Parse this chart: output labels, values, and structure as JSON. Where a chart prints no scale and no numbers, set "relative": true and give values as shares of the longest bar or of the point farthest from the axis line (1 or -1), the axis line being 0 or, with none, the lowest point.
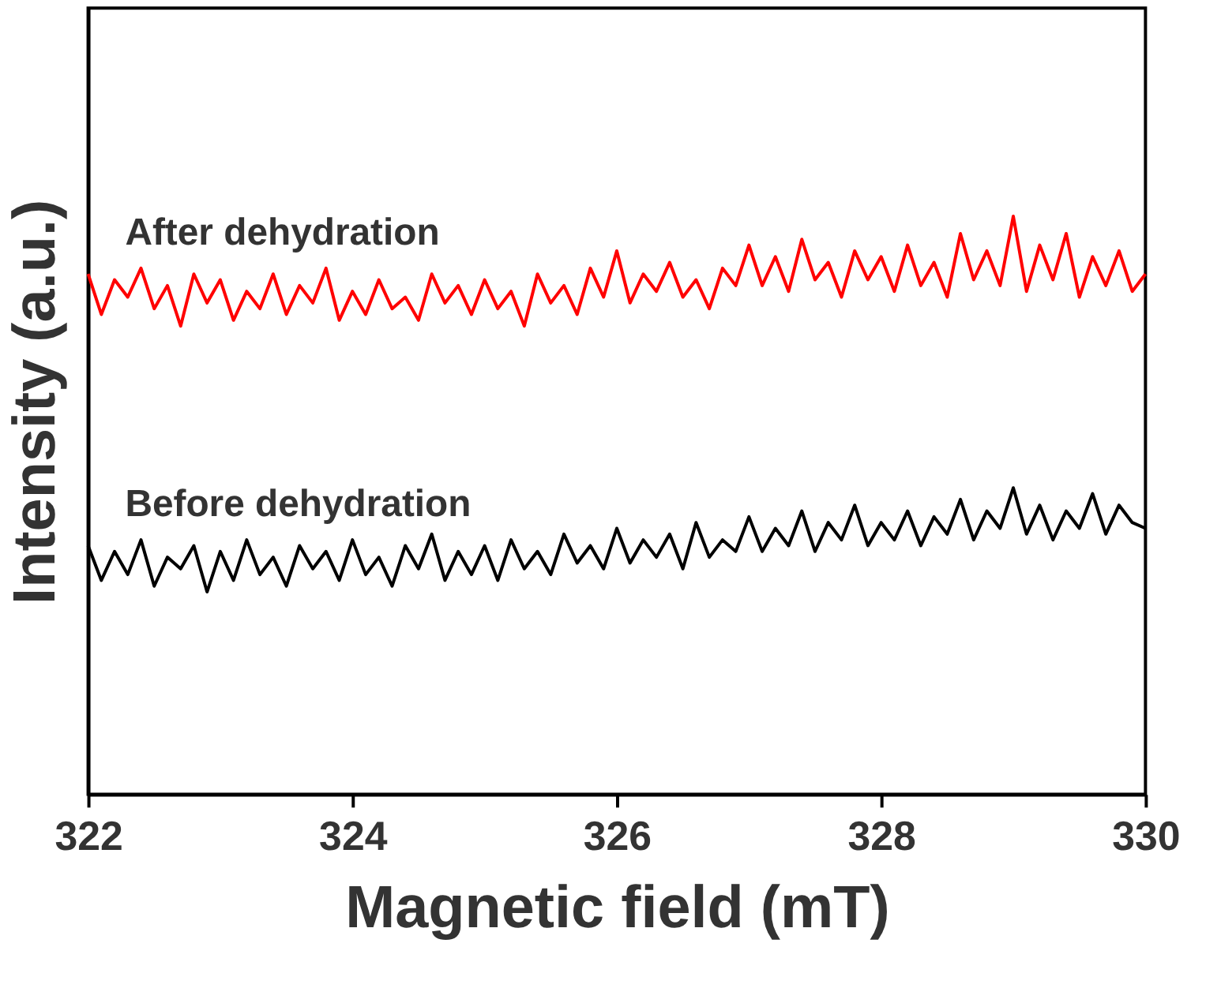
{
  "chart_data": {
    "type": "line",
    "relative": true,
    "xlabel": "Magnetic field (mT)",
    "ylabel": "Intensity (a.u.)",
    "xlim": [
      322,
      330
    ],
    "xticks": [
      322,
      324,
      326,
      328,
      330
    ],
    "tick_labels": "x",
    "grid": false,
    "legend": false,
    "marker": "none",
    "line_style": "solid",
    "x": [
      322.0,
      322.1,
      322.2,
      322.3,
      322.4,
      322.5,
      322.6,
      322.7,
      322.8,
      322.9,
      323.0,
      323.1,
      323.2,
      323.3,
      323.4,
      323.5,
      323.6,
      323.7,
      323.8,
      323.9,
      324.0,
      324.1,
      324.2,
      324.3,
      324.4,
      324.5,
      324.6,
      324.7,
      324.8,
      324.9,
      325.0,
      325.1,
      325.2,
      325.3,
      325.4,
      325.5,
      325.6,
      325.7,
      325.8,
      325.9,
      326.0,
      326.1,
      326.2,
      326.3,
      326.4,
      326.5,
      326.6,
      326.7,
      326.8,
      326.9,
      327.0,
      327.1,
      327.2,
      327.3,
      327.4,
      327.5,
      327.6,
      327.7,
      327.8,
      327.9,
      328.0,
      328.1,
      328.2,
      328.3,
      328.4,
      328.5,
      328.6,
      328.7,
      328.8,
      328.9,
      329.0,
      329.1,
      329.2,
      329.3,
      329.4,
      329.5,
      329.6,
      329.7,
      329.8,
      329.9,
      330.0
    ],
    "series": [
      {
        "name": "After dehydration",
        "color": "#ff0000",
        "values": [
          0.9,
          0.83,
          0.89,
          0.86,
          0.91,
          0.84,
          0.88,
          0.81,
          0.9,
          0.85,
          0.89,
          0.82,
          0.87,
          0.84,
          0.9,
          0.83,
          0.88,
          0.85,
          0.91,
          0.82,
          0.87,
          0.83,
          0.89,
          0.84,
          0.86,
          0.82,
          0.9,
          0.85,
          0.88,
          0.83,
          0.89,
          0.84,
          0.87,
          0.81,
          0.9,
          0.85,
          0.88,
          0.83,
          0.91,
          0.86,
          0.94,
          0.85,
          0.9,
          0.87,
          0.92,
          0.86,
          0.89,
          0.84,
          0.91,
          0.88,
          0.95,
          0.88,
          0.93,
          0.87,
          0.96,
          0.89,
          0.92,
          0.86,
          0.94,
          0.89,
          0.93,
          0.87,
          0.95,
          0.88,
          0.92,
          0.86,
          0.97,
          0.89,
          0.94,
          0.88,
          1.0,
          0.87,
          0.95,
          0.89,
          0.97,
          0.86,
          0.93,
          0.88,
          0.94,
          0.87,
          0.9
        ]
      },
      {
        "name": "Before dehydration",
        "color": "#000000",
        "values": [
          0.43,
          0.37,
          0.42,
          0.38,
          0.44,
          0.36,
          0.41,
          0.39,
          0.43,
          0.35,
          0.42,
          0.37,
          0.44,
          0.38,
          0.41,
          0.36,
          0.43,
          0.39,
          0.42,
          0.37,
          0.44,
          0.38,
          0.41,
          0.36,
          0.43,
          0.39,
          0.45,
          0.37,
          0.42,
          0.38,
          0.43,
          0.37,
          0.44,
          0.39,
          0.42,
          0.38,
          0.45,
          0.4,
          0.43,
          0.39,
          0.46,
          0.4,
          0.44,
          0.41,
          0.45,
          0.39,
          0.47,
          0.41,
          0.44,
          0.42,
          0.48,
          0.42,
          0.46,
          0.43,
          0.49,
          0.42,
          0.47,
          0.44,
          0.5,
          0.43,
          0.47,
          0.44,
          0.49,
          0.43,
          0.48,
          0.45,
          0.51,
          0.44,
          0.49,
          0.46,
          0.53,
          0.45,
          0.5,
          0.44,
          0.49,
          0.46,
          0.52,
          0.45,
          0.5,
          0.47,
          0.46
        ]
      }
    ]
  }
}
